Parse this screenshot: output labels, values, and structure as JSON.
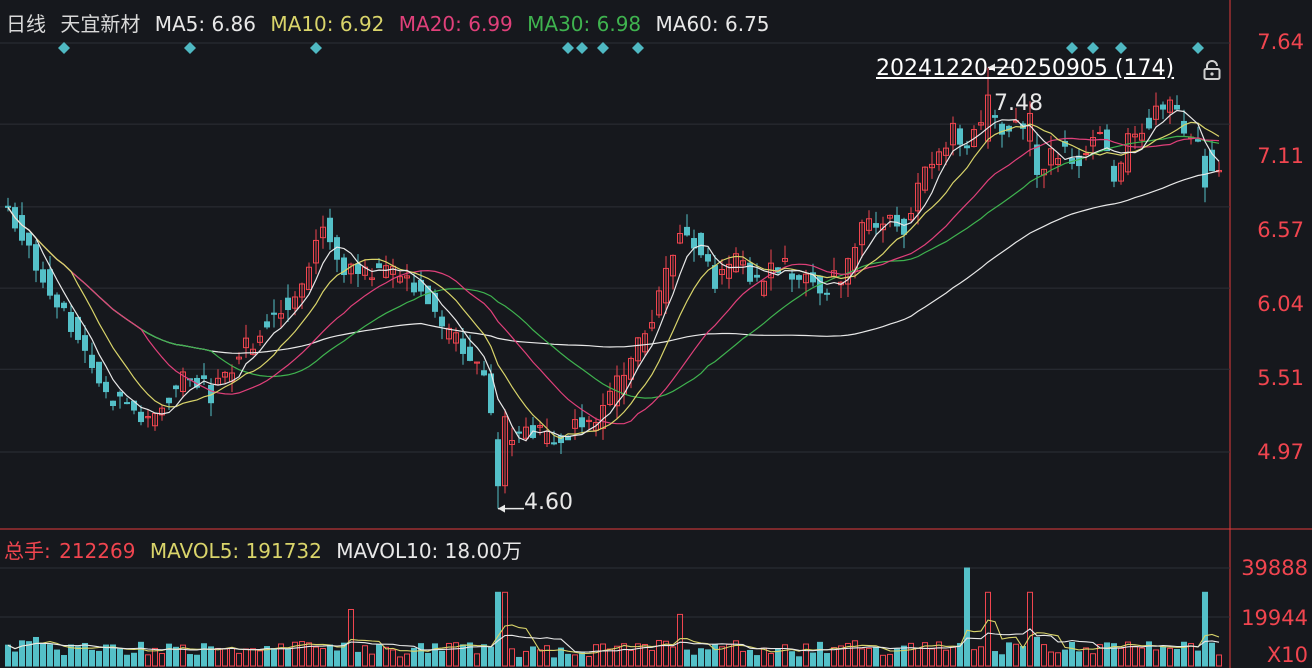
{
  "header": {
    "period": "日线",
    "stock_name": "天宜新材",
    "ma": [
      {
        "label": "MA5: 6.86",
        "color": "#e8e8e8"
      },
      {
        "label": "MA10: 6.92",
        "color": "#d9d46a"
      },
      {
        "label": "MA20: 6.99",
        "color": "#e0407a"
      },
      {
        "label": "MA30: 6.98",
        "color": "#3fb34f"
      },
      {
        "label": "MA60: 6.75",
        "color": "#e8e8e8"
      }
    ]
  },
  "range_label": "20241220-20250905 (174)",
  "annotations": {
    "high": "7.48",
    "low": "4.60"
  },
  "volume_header": {
    "total_label": "总手:",
    "total_value": "212269",
    "mavol5": "MAVOL5: 191732",
    "mavol10": "MAVOL10: 18.00万"
  },
  "price_axis": [
    "7.64",
    "7.11",
    "6.57",
    "6.04",
    "5.51",
    "4.97"
  ],
  "volume_axis": [
    "39888",
    "19944",
    "X10"
  ],
  "chart_data": {
    "type": "candlestick",
    "ylim": [
      4.45,
      7.75
    ],
    "yticks": [
      7.64,
      7.11,
      6.57,
      6.04,
      5.51,
      4.97
    ],
    "volume_ylim": [
      0,
      40000
    ],
    "volume_ticks": [
      39888,
      19944
    ],
    "anchors": [
      [
        0,
        6.55
      ],
      [
        5,
        6.1
      ],
      [
        10,
        5.75
      ],
      [
        14,
        5.35
      ],
      [
        17,
        5.3
      ],
      [
        20,
        5.15
      ],
      [
        23,
        5.35
      ],
      [
        26,
        5.5
      ],
      [
        29,
        5.35
      ],
      [
        32,
        5.55
      ],
      [
        35,
        5.7
      ],
      [
        38,
        5.9
      ],
      [
        41,
        5.95
      ],
      [
        43,
        6.2
      ],
      [
        45,
        6.5
      ],
      [
        47,
        6.2
      ],
      [
        50,
        6.15
      ],
      [
        53,
        6.15
      ],
      [
        56,
        6.1
      ],
      [
        59,
        6.05
      ],
      [
        62,
        5.75
      ],
      [
        65,
        5.65
      ],
      [
        68,
        5.45
      ],
      [
        70,
        4.9
      ],
      [
        72,
        5.05
      ],
      [
        75,
        5.1
      ],
      [
        78,
        5.05
      ],
      [
        81,
        5.15
      ],
      [
        84,
        5.15
      ],
      [
        87,
        5.4
      ],
      [
        90,
        5.65
      ],
      [
        93,
        6.0
      ],
      [
        96,
        6.45
      ],
      [
        98,
        6.35
      ],
      [
        101,
        6.1
      ],
      [
        104,
        6.2
      ],
      [
        107,
        6.05
      ],
      [
        110,
        6.2
      ],
      [
        113,
        6.1
      ],
      [
        116,
        6.05
      ],
      [
        119,
        6.1
      ],
      [
        122,
        6.4
      ],
      [
        125,
        6.5
      ],
      [
        128,
        6.45
      ],
      [
        131,
        6.8
      ],
      [
        133,
        6.9
      ],
      [
        135,
        7.1
      ],
      [
        137,
        6.95
      ],
      [
        139,
        7.15
      ],
      [
        142,
        7.1
      ],
      [
        145,
        7.05
      ],
      [
        147,
        6.8
      ],
      [
        150,
        6.95
      ],
      [
        153,
        6.9
      ],
      [
        156,
        7.05
      ],
      [
        158,
        6.7
      ],
      [
        160,
        7.0
      ],
      [
        163,
        7.15
      ],
      [
        166,
        7.25
      ],
      [
        168,
        7.05
      ],
      [
        170,
        6.95
      ],
      [
        173,
        6.78
      ]
    ],
    "special_days": [
      {
        "i": 70,
        "o": 5.05,
        "c": 4.75,
        "h": 5.1,
        "l": 4.6
      },
      {
        "i": 71,
        "o": 4.75,
        "c": 5.2,
        "h": 5.25,
        "l": 4.7
      },
      {
        "i": 140,
        "o": 7.0,
        "c": 7.3,
        "h": 7.48,
        "l": 6.95
      },
      {
        "i": 146,
        "o": 7.0,
        "c": 7.18,
        "h": 7.26,
        "l": 6.9
      },
      {
        "i": 171,
        "o": 6.9,
        "c": 6.7,
        "h": 6.95,
        "l": 6.6
      }
    ],
    "signal_days": [
      8,
      26,
      44,
      80,
      82,
      85,
      90,
      152,
      155,
      159,
      170
    ],
    "ma_colors": {
      "ma5": "#e8e8e8",
      "ma10": "#d9d46a",
      "ma20": "#e0407a",
      "ma30": "#3fb34f",
      "ma60": "#e8e8e8"
    },
    "up_color": "#f0454f",
    "down_color": "#54c0c8",
    "signal_color": "#4fb9c3",
    "volume_lines": [
      {
        "name": "MAVOL5",
        "color": "#d9d46a"
      },
      {
        "name": "MAVOL10",
        "color": "#e8e8e8"
      }
    ]
  }
}
